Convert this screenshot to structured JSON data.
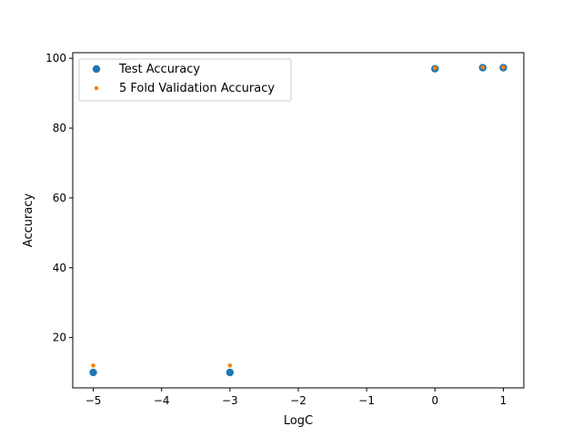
{
  "chart_data": {
    "type": "scatter",
    "title": "",
    "xlabel": "LogC",
    "ylabel": "Accuracy",
    "xlim": [
      -5.3,
      1.3
    ],
    "ylim": [
      5.6,
      101.6
    ],
    "xticks": [
      -5,
      -4,
      -3,
      -2,
      -1,
      0,
      1
    ],
    "xtick_labels": [
      "−5",
      "−4",
      "−3",
      "−2",
      "−1",
      "0",
      "1"
    ],
    "yticks": [
      20,
      40,
      60,
      80,
      100
    ],
    "ytick_labels": [
      "20",
      "40",
      "60",
      "80",
      "100"
    ],
    "grid": false,
    "legend_position": "upper-left",
    "series": [
      {
        "name": "Test Accuracy",
        "color": "#1f77b4",
        "marker": "large",
        "x": [
          -5,
          -3,
          0,
          0.699,
          1
        ],
        "y": [
          10.0,
          10.0,
          97.0,
          97.3,
          97.3
        ]
      },
      {
        "name": "5 Fold Validation Accuracy",
        "color": "#ff7f0e",
        "marker": "small",
        "x": [
          -5,
          -3,
          0,
          0.699,
          1
        ],
        "y": [
          12.0,
          12.0,
          97.2,
          97.4,
          97.4
        ]
      }
    ]
  }
}
